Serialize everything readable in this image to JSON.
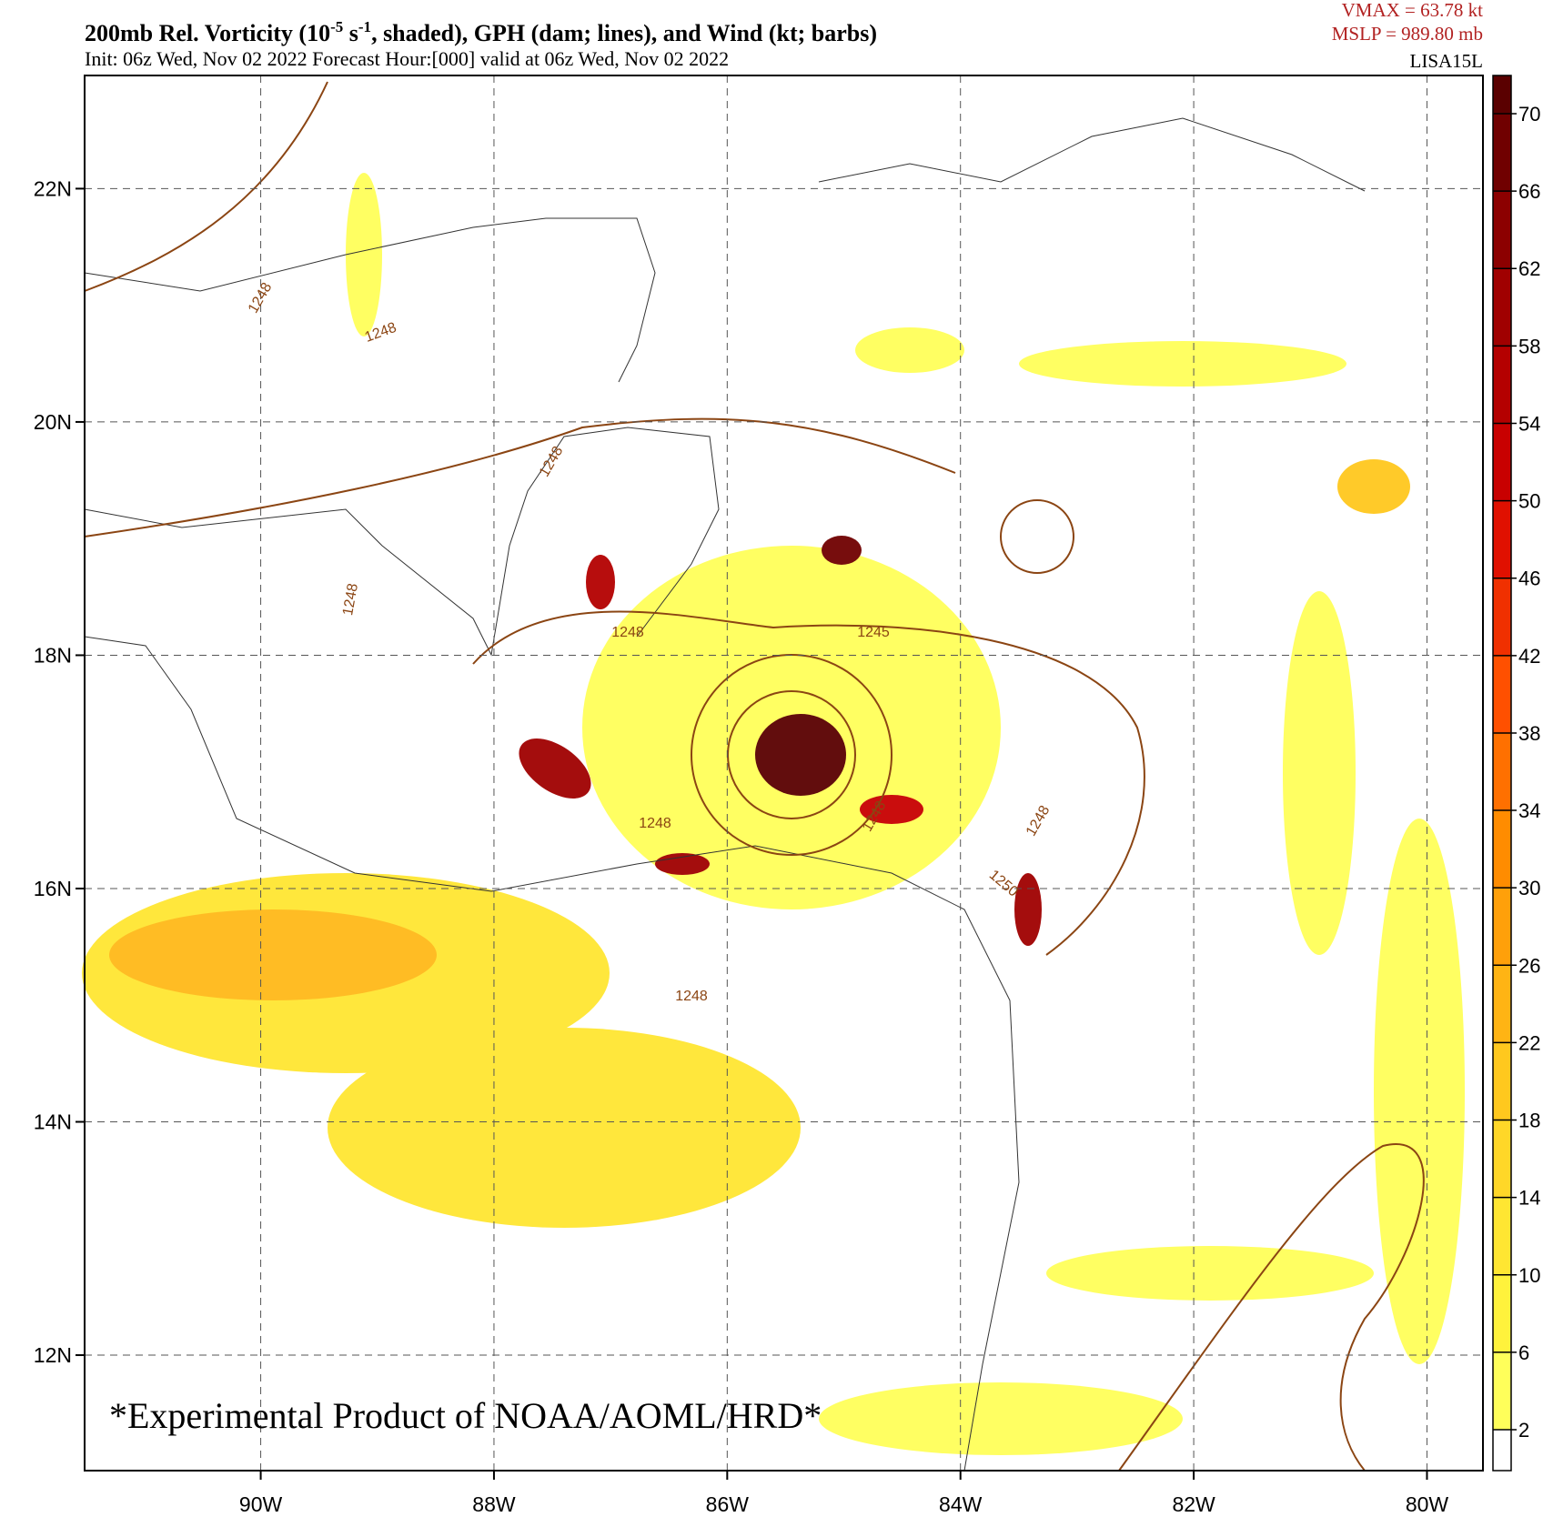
{
  "header": {
    "title_parts": [
      "200mb Rel. Vorticity (10",
      "-5",
      " s",
      "-1",
      ", shaded), GPH (dam; lines), and Wind (kt; barbs)"
    ],
    "subtitle": "Init: 06z Wed, Nov 02 2022  Forecast Hour:[000]  valid at 06z Wed, Nov 02 2022",
    "vmax": "VMAX =   63.78 kt",
    "mslp": "MSLP =  989.80 mb",
    "storm": "LISA15L"
  },
  "map": {
    "lon_range": [
      -91.51,
      -79.52
    ],
    "lat_range": [
      11.01,
      22.97
    ],
    "lon_ticks": [
      {
        "value": -90,
        "label": "90W"
      },
      {
        "value": -88,
        "label": "88W"
      },
      {
        "value": -86,
        "label": "86W"
      },
      {
        "value": -84,
        "label": "84W"
      },
      {
        "value": -82,
        "label": "82W"
      },
      {
        "value": -80,
        "label": "80W"
      }
    ],
    "lat_ticks": [
      {
        "value": 22,
        "label": "22N"
      },
      {
        "value": 20,
        "label": "20N"
      },
      {
        "value": 18,
        "label": "18N"
      },
      {
        "value": 16,
        "label": "16N"
      },
      {
        "value": 14,
        "label": "14N"
      },
      {
        "value": 12,
        "label": "12N"
      }
    ],
    "contour_labels": [
      "1248",
      "1248",
      "1248",
      "1248",
      "1248",
      "1245",
      "1248",
      "1248",
      "1250",
      "1248",
      "1248"
    ],
    "watermark": "*Experimental Product of NOAA/AOML/HRD*"
  },
  "colorbar": {
    "ticks": [
      2,
      6,
      10,
      14,
      18,
      22,
      26,
      30,
      34,
      38,
      42,
      46,
      50,
      54,
      58,
      62,
      66,
      70
    ],
    "colors": [
      "#ffffff",
      "#ffff5a",
      "#fff23c",
      "#ffe632",
      "#ffd728",
      "#ffc81e",
      "#ffb414",
      "#ffa00a",
      "#ff8c00",
      "#ff7000",
      "#ff5000",
      "#f03000",
      "#e01000",
      "#c80000",
      "#b40000",
      "#a00000",
      "#8c0000",
      "#700000",
      "#5a0000"
    ]
  }
}
